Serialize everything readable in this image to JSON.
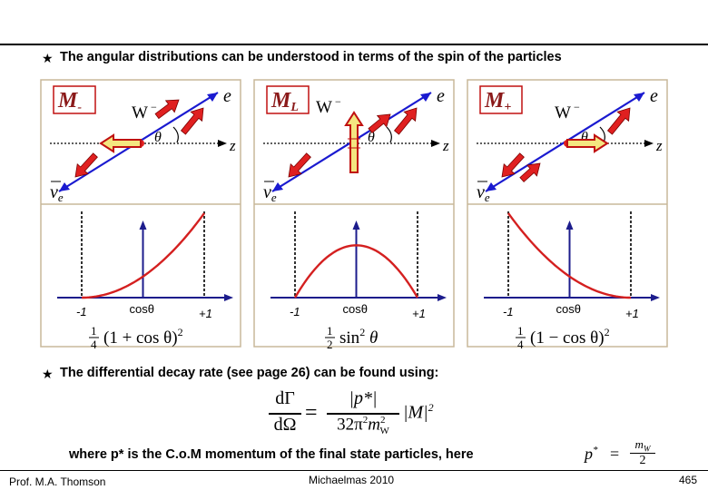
{
  "intro": {
    "bullet": "★",
    "text": "The angular distributions can be understood in terms of the spin of the particles"
  },
  "panels": [
    {
      "label_main": "M",
      "label_sub": "-",
      "w_label": "W",
      "w_sup": "−",
      "theta": "θ",
      "e_label": "e",
      "z_label": "z",
      "nu_label": "ν",
      "nu_sub": "e",
      "axis_left": "-1",
      "axis_mid": "cosθ",
      "axis_right": "+1",
      "formula_frac_num": "1",
      "formula_frac_den": "4",
      "formula_body": "(1 + cos θ)",
      "formula_sup": "2",
      "curve": "increasing"
    },
    {
      "label_main": "M",
      "label_sub": "L",
      "w_label": "W",
      "w_sup": "−",
      "theta": "θ",
      "e_label": "e",
      "z_label": "z",
      "nu_label": "ν",
      "nu_sub": "e",
      "axis_left": "-1",
      "axis_mid": "cosθ",
      "axis_right": "+1",
      "formula_frac_num": "1",
      "formula_frac_den": "2",
      "formula_body": "sin",
      "formula_sup": "2",
      "formula_tail": " θ",
      "curve": "sin2"
    },
    {
      "label_main": "M",
      "label_sub": "+",
      "w_label": "W",
      "w_sup": "−",
      "theta": "θ",
      "e_label": "e",
      "z_label": "z",
      "nu_label": "ν",
      "nu_sub": "e",
      "axis_left": "-1",
      "axis_mid": "cosθ",
      "axis_right": "+1",
      "formula_frac_num": "1",
      "formula_frac_den": "4",
      "formula_body": "(1 − cos θ)",
      "formula_sup": "2",
      "curve": "decreasing"
    }
  ],
  "differential": {
    "bullet": "★",
    "text": "The differential decay rate (see page 26) can be found using:",
    "lhs_num": "dΓ",
    "lhs_den": "dΩ",
    "equals": "=",
    "rhs_num": "|p*|",
    "rhs_den_main": "32π",
    "rhs_den_sup": "2",
    "rhs_den_m": "m",
    "rhs_den_msup": "2",
    "rhs_den_msub": "W",
    "rhs_tail": "|M|",
    "rhs_tail_sup": "2"
  },
  "where": {
    "text": "where p* is the C.o.M momentum of the final state particles, here",
    "p_label": "p",
    "p_sup": "*",
    "equals": "=",
    "frac_num": "m",
    "frac_num_sub": "W",
    "frac_den": "2"
  },
  "footer": {
    "author": "Prof. M.A. Thomson",
    "term": "Michaelmas 2010",
    "page": "465"
  },
  "colors": {
    "box_border": "#c8b89a",
    "line_blue": "#1a1ad0",
    "arrow_red": "#e02020",
    "arrow_yellow": "#f4e680",
    "curve_red": "#d42020",
    "axis_navy": "#1c1c8c",
    "label_maroon": "#8b1a1a"
  }
}
